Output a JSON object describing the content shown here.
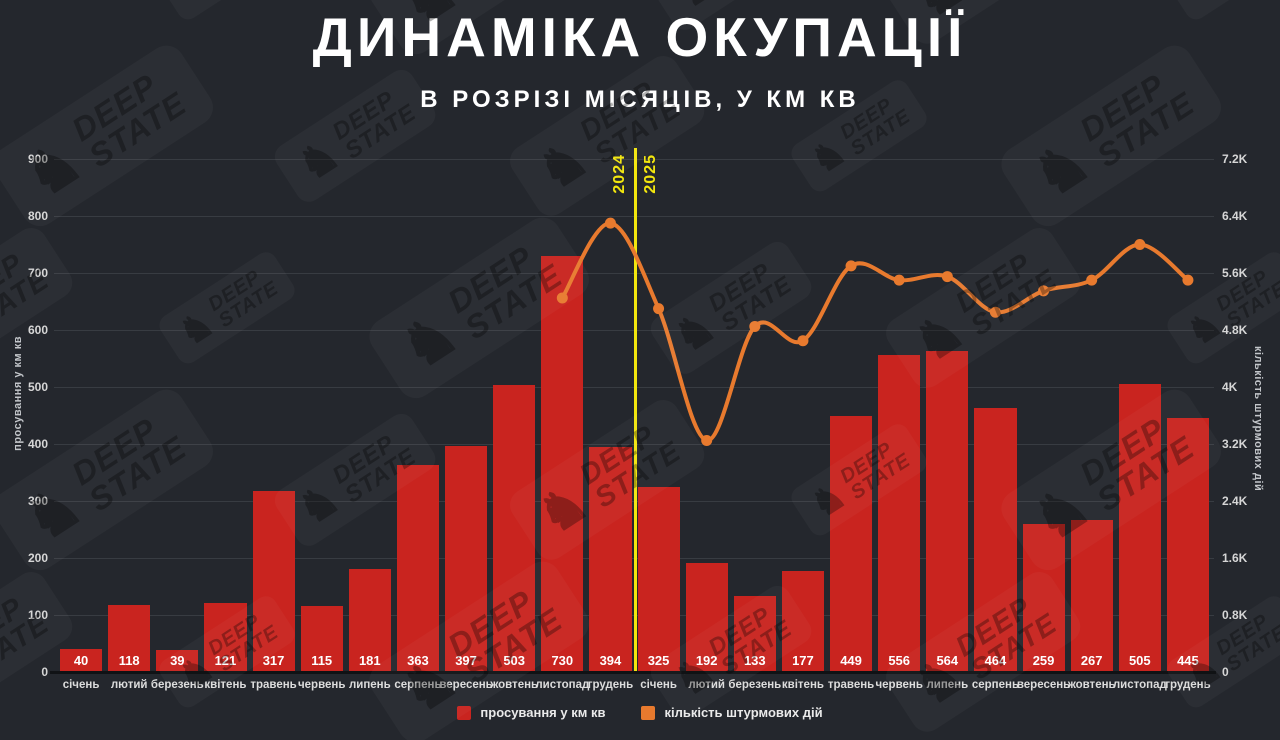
{
  "watermark": {
    "icon": "chess-knight-icon",
    "line1": "DEEP",
    "line2": "STATE"
  },
  "chart_data": {
    "type": "bar",
    "combo": "bar+line",
    "title": "ДИНАМІКА ОКУПАЦІЇ",
    "subtitle": "В РОЗРІЗІ МІСЯЦІВ, У КМ КВ",
    "categories": [
      "січень",
      "лютий",
      "березень",
      "квітень",
      "травень",
      "червень",
      "липень",
      "серпень",
      "вересень",
      "жовтень",
      "листопад",
      "грудень",
      "січень",
      "лютий",
      "березень",
      "квітень",
      "травень",
      "червень",
      "липень",
      "серпень",
      "вересень",
      "жовтень",
      "листопад",
      "грудень"
    ],
    "series": [
      {
        "name": "просування у км кв",
        "type": "bar",
        "axis": "left",
        "color": "#c9241f",
        "values": [
          40,
          118,
          39,
          121,
          317,
          115,
          181,
          363,
          397,
          503,
          730,
          394,
          325,
          192,
          133,
          177,
          449,
          556,
          564,
          464,
          259,
          267,
          505,
          445
        ]
      },
      {
        "name": "кількість штурмових дій",
        "type": "line",
        "axis": "right",
        "color": "#e87a2e",
        "values": [
          null,
          null,
          null,
          null,
          null,
          null,
          null,
          null,
          null,
          null,
          5250,
          6300,
          5100,
          3250,
          4850,
          4650,
          5700,
          5500,
          5550,
          5050,
          5350,
          5500,
          6000,
          5500
        ]
      }
    ],
    "left_axis": {
      "label": "просування у км кв",
      "min": 0,
      "max": 900,
      "tick_step": 100,
      "ticks": [
        "0",
        "100",
        "200",
        "300",
        "400",
        "500",
        "600",
        "700",
        "800",
        "900"
      ]
    },
    "right_axis": {
      "label": "кількість штурмових дій",
      "min": 0,
      "max": 7200,
      "tick_step": 800,
      "ticks": [
        "0",
        "0.8K",
        "1.6K",
        "2.4K",
        "3.2K",
        "4K",
        "4.8K",
        "5.6K",
        "6.4K",
        "7.2K"
      ]
    },
    "grid": "horizontal",
    "legend_position": "bottom",
    "bar_value_labels": true,
    "year_divider": {
      "after_category_index": 11,
      "labels": [
        "2024",
        "2025"
      ],
      "color": "#f2e60e"
    },
    "background_color": "#24272d"
  }
}
